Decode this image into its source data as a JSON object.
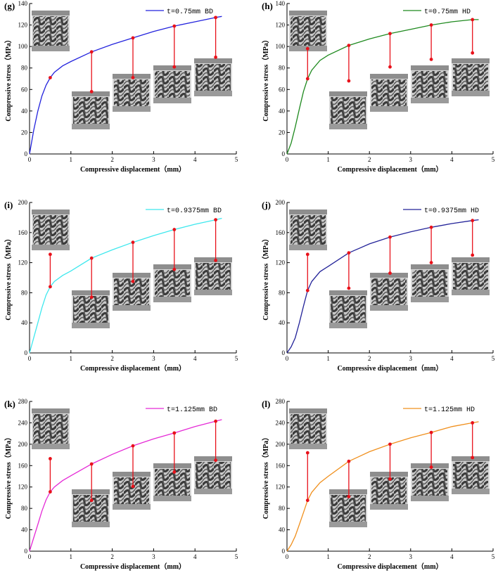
{
  "colors": {
    "axis": "#000000",
    "marker": "#e8111a",
    "thumbDark": "#3a3a3a",
    "thumbLight": "#d8d8d8"
  },
  "chart_data": [
    {
      "type": "line",
      "panel": "(g)",
      "title": "",
      "legend": "t=0.75mm BD",
      "color": "#2323dd",
      "xlabel": "Compressive displacement（mm）",
      "ylabel": "Compressive stress（MPa）",
      "xlim": [
        0,
        5
      ],
      "ylim": [
        0,
        140
      ],
      "xticks": [
        "0",
        "1",
        "2",
        "3",
        "4",
        "5"
      ],
      "yticks": [
        "0",
        "20",
        "40",
        "60",
        "80",
        "100",
        "120",
        "140"
      ],
      "series": [
        {
          "name": "t=0.75mm BD",
          "x": [
            0,
            0.1,
            0.2,
            0.3,
            0.4,
            0.5,
            0.6,
            0.8,
            1.0,
            1.5,
            2.0,
            2.5,
            3.0,
            3.5,
            4.0,
            4.5,
            4.65
          ],
          "y": [
            0,
            22,
            40,
            54,
            64,
            71,
            76,
            82,
            86,
            95,
            102,
            108,
            114,
            119,
            123,
            127,
            128
          ]
        }
      ],
      "markers": [
        {
          "x": 0.5,
          "top": 71,
          "bottom": 71
        },
        {
          "x": 1.5,
          "top": 95,
          "bottom": 58
        },
        {
          "x": 2.5,
          "top": 108,
          "bottom": 71
        },
        {
          "x": 3.5,
          "top": 119,
          "bottom": 81
        },
        {
          "x": 4.5,
          "top": 127,
          "bottom": 90
        }
      ],
      "thumbnails": 5
    },
    {
      "type": "line",
      "panel": "(h)",
      "title": "",
      "legend": "t=0.75mm HD",
      "color": "#1f8a1f",
      "xlabel": "Compressive displacement（mm）",
      "ylabel": "Compressive stress（MPa）",
      "xlim": [
        0,
        5
      ],
      "ylim": [
        0,
        140
      ],
      "xticks": [
        "0",
        "1",
        "2",
        "3",
        "4",
        "5"
      ],
      "yticks": [
        "0",
        "20",
        "40",
        "60",
        "80",
        "100",
        "120",
        "140"
      ],
      "series": [
        {
          "name": "t=0.75mm HD",
          "x": [
            0,
            0.1,
            0.2,
            0.3,
            0.4,
            0.5,
            0.6,
            0.8,
            1.0,
            1.5,
            2.0,
            2.5,
            3.0,
            3.5,
            4.0,
            4.5,
            4.65
          ],
          "y": [
            0,
            10,
            25,
            42,
            58,
            70,
            78,
            87,
            92,
            101,
            107,
            112,
            116,
            120,
            123,
            125,
            125
          ]
        }
      ],
      "markers": [
        {
          "x": 0.5,
          "top": 98,
          "bottom": 70
        },
        {
          "x": 1.5,
          "top": 101,
          "bottom": 68
        },
        {
          "x": 2.5,
          "top": 112,
          "bottom": 81
        },
        {
          "x": 3.5,
          "top": 120,
          "bottom": 88
        },
        {
          "x": 4.5,
          "top": 125,
          "bottom": 94
        }
      ],
      "thumbnails": 5
    },
    {
      "type": "line",
      "panel": "(i)",
      "title": "",
      "legend": "t=0.9375mm BD",
      "color": "#3ee8ee",
      "xlabel": "Compressive displacement（mm）",
      "ylabel": "Compressive stress（MPa）",
      "xlim": [
        0,
        5
      ],
      "ylim": [
        0,
        200
      ],
      "xticks": [
        "0",
        "1",
        "2",
        "3",
        "4",
        "5"
      ],
      "yticks": [
        "0",
        "40",
        "80",
        "120",
        "160",
        "200"
      ],
      "series": [
        {
          "name": "t=0.9375mm BD",
          "x": [
            0,
            0.1,
            0.2,
            0.3,
            0.4,
            0.5,
            0.6,
            0.8,
            1.0,
            1.5,
            2.0,
            2.5,
            3.0,
            3.5,
            4.0,
            4.5,
            4.65
          ],
          "y": [
            0,
            20,
            40,
            60,
            77,
            88,
            95,
            103,
            109,
            126,
            137,
            147,
            156,
            164,
            171,
            177,
            179
          ]
        }
      ],
      "markers": [
        {
          "x": 0.5,
          "top": 131,
          "bottom": 88
        },
        {
          "x": 1.5,
          "top": 126,
          "bottom": 74
        },
        {
          "x": 2.5,
          "top": 147,
          "bottom": 95
        },
        {
          "x": 3.5,
          "top": 164,
          "bottom": 111
        },
        {
          "x": 4.5,
          "top": 177,
          "bottom": 123
        }
      ],
      "thumbnails": 5
    },
    {
      "type": "line",
      "panel": "(j)",
      "title": "",
      "legend": "t=0.9375mm HD",
      "color": "#232399",
      "xlabel": "Compressive displacement（mm）",
      "ylabel": "Compressive stress（MPa）",
      "xlim": [
        0,
        5
      ],
      "ylim": [
        0,
        200
      ],
      "xticks": [
        "0",
        "1",
        "2",
        "3",
        "4",
        "5"
      ],
      "yticks": [
        "0",
        "40",
        "80",
        "120",
        "160",
        "200"
      ],
      "series": [
        {
          "name": "t=0.9375mm HD",
          "x": [
            0,
            0.1,
            0.2,
            0.3,
            0.4,
            0.5,
            0.6,
            0.8,
            1.0,
            1.5,
            2.0,
            2.5,
            3.0,
            3.5,
            4.0,
            4.5,
            4.65
          ],
          "y": [
            0,
            8,
            20,
            40,
            62,
            83,
            95,
            108,
            115,
            133,
            145,
            154,
            161,
            167,
            172,
            176,
            177
          ]
        }
      ],
      "markers": [
        {
          "x": 0.5,
          "top": 131,
          "bottom": 83
        },
        {
          "x": 1.5,
          "top": 133,
          "bottom": 86
        },
        {
          "x": 2.5,
          "top": 154,
          "bottom": 106
        },
        {
          "x": 3.5,
          "top": 167,
          "bottom": 120
        },
        {
          "x": 4.5,
          "top": 176,
          "bottom": 130
        }
      ],
      "thumbnails": 5
    },
    {
      "type": "line",
      "panel": "(k)",
      "title": "",
      "legend": "t=1.125mm BD",
      "color": "#e52ad6",
      "xlabel": "Compressive displacement（mm）",
      "ylabel": "Compressive stress（MPa）",
      "xlim": [
        0,
        5
      ],
      "ylim": [
        0,
        280
      ],
      "xticks": [
        "0",
        "1",
        "2",
        "3",
        "4",
        "5"
      ],
      "yticks": [
        "0",
        "40",
        "80",
        "120",
        "160",
        "200",
        "240",
        "280"
      ],
      "series": [
        {
          "name": "t=1.125mm BD",
          "x": [
            0,
            0.1,
            0.2,
            0.3,
            0.4,
            0.5,
            0.6,
            0.8,
            1.0,
            1.5,
            2.0,
            2.5,
            3.0,
            3.5,
            4.0,
            4.5,
            4.65
          ],
          "y": [
            0,
            25,
            50,
            75,
            96,
            111,
            120,
            132,
            141,
            163,
            181,
            197,
            210,
            221,
            233,
            243,
            246
          ]
        }
      ],
      "markers": [
        {
          "x": 0.5,
          "top": 173,
          "bottom": 111
        },
        {
          "x": 1.5,
          "top": 163,
          "bottom": 95
        },
        {
          "x": 2.5,
          "top": 197,
          "bottom": 121
        },
        {
          "x": 3.5,
          "top": 221,
          "bottom": 148
        },
        {
          "x": 4.5,
          "top": 243,
          "bottom": 170
        }
      ],
      "thumbnails": 5
    },
    {
      "type": "line",
      "panel": "(l)",
      "title": "",
      "legend": "t=1.125mm HD",
      "color": "#f0901e",
      "xlabel": "Compressive displacement（mm）",
      "ylabel": "Compressive stress（MPa）",
      "xlim": [
        0,
        5
      ],
      "ylim": [
        0,
        280
      ],
      "xticks": [
        "0",
        "1",
        "2",
        "3",
        "4",
        "5"
      ],
      "yticks": [
        "0",
        "40",
        "80",
        "120",
        "160",
        "200",
        "240",
        "280"
      ],
      "series": [
        {
          "name": "t=1.125mm HD",
          "x": [
            0,
            0.1,
            0.2,
            0.3,
            0.4,
            0.5,
            0.6,
            0.8,
            1.0,
            1.5,
            2.0,
            2.5,
            3.0,
            3.5,
            4.0,
            4.5,
            4.65
          ],
          "y": [
            0,
            12,
            28,
            50,
            72,
            95,
            110,
            128,
            140,
            168,
            186,
            200,
            212,
            222,
            233,
            240,
            242
          ]
        }
      ],
      "markers": [
        {
          "x": 0.5,
          "top": 184,
          "bottom": 95
        },
        {
          "x": 1.5,
          "top": 168,
          "bottom": 102
        },
        {
          "x": 2.5,
          "top": 200,
          "bottom": 135
        },
        {
          "x": 3.5,
          "top": 222,
          "bottom": 157
        },
        {
          "x": 4.5,
          "top": 240,
          "bottom": 175
        }
      ],
      "thumbnails": 5
    }
  ]
}
